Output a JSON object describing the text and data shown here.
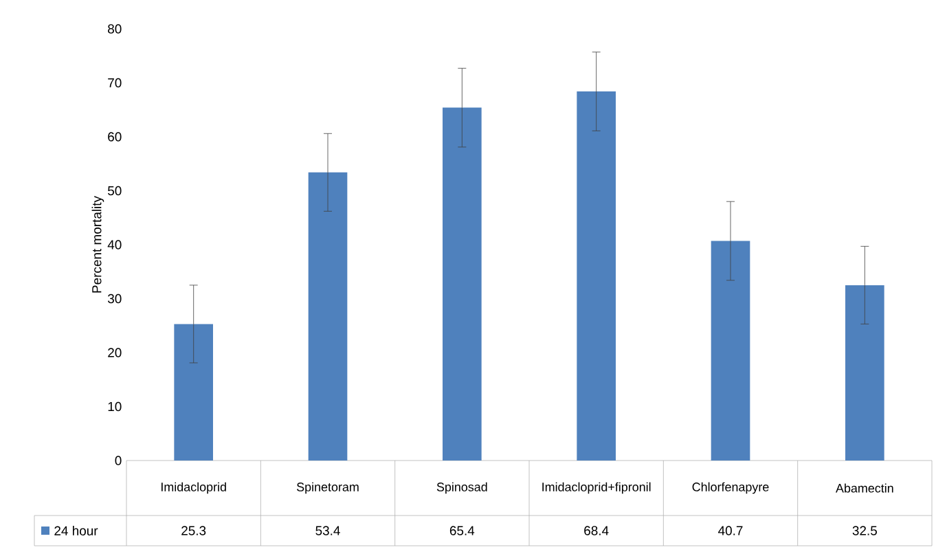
{
  "chart_data": {
    "type": "bar",
    "ylabel": "Percent mortality",
    "categories": [
      "Imidacloprid",
      "Spinetoram",
      "Spinosad",
      "Imidacloprid+fipronil",
      "Chlorfenapyre",
      "Abamectin"
    ],
    "series": [
      {
        "name": "24 hour",
        "color": "#4f81bd",
        "values": [
          25.3,
          53.4,
          65.4,
          68.4,
          40.7,
          32.5
        ],
        "errors": [
          7.2,
          7.2,
          7.3,
          7.3,
          7.3,
          7.2
        ],
        "value_labels": [
          "25.3",
          "53.4",
          "65.4",
          "68.4",
          "40.7",
          "32.5"
        ]
      }
    ],
    "ylim": [
      0,
      80
    ],
    "yticks": [
      0,
      10,
      20,
      30,
      40,
      50,
      60,
      70,
      80
    ],
    "grid": false,
    "legend": "bottom"
  }
}
